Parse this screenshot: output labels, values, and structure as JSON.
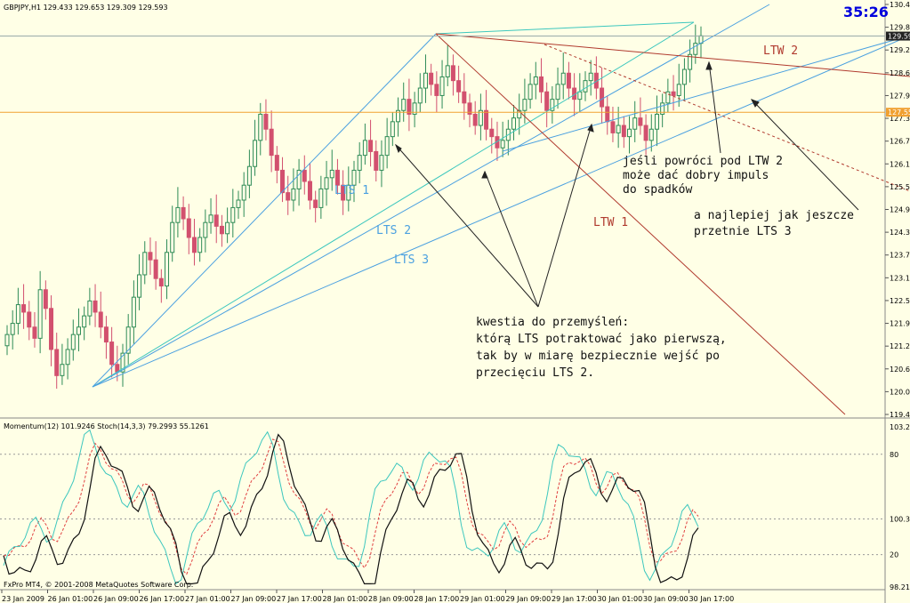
{
  "chart_data": {
    "type": "candlestick",
    "symbol_header": "GBPJPY,H1  129.433 129.653 129.309 129.593",
    "countdown": "35:26",
    "price_axis": {
      "range": [
        119.46,
        130.44
      ],
      "labels": [
        "130.440",
        "129.825",
        "129.225",
        "128.610",
        "127.995",
        "127.395",
        "126.780",
        "126.165",
        "125.565",
        "124.950",
        "124.335",
        "123.735",
        "123.120",
        "122.505",
        "121.905",
        "121.290",
        "120.675",
        "120.060",
        "119.460"
      ],
      "current_price_label": "129.593",
      "orange_level_label": "127.553"
    },
    "time_axis_labels": [
      "23 Jan 2009",
      "26 Jan 01:00",
      "26 Jan 09:00",
      "26 Jan 17:00",
      "27 Jan 01:00",
      "27 Jan 09:00",
      "27 Jan 17:00",
      "28 Jan 01:00",
      "28 Jan 09:00",
      "28 Jan 17:00",
      "29 Jan 01:00",
      "29 Jan 09:00",
      "29 Jan 17:00",
      "30 Jan 01:00",
      "30 Jan 09:00",
      "30 Jan 17:00"
    ],
    "candles_close": [
      121.6,
      121.9,
      122.4,
      122.2,
      121.8,
      121.5,
      122.8,
      122.3,
      121.2,
      120.5,
      120.8,
      121.2,
      121.6,
      121.8,
      122.1,
      122.5,
      122.2,
      121.8,
      121.4,
      120.8,
      120.6,
      121.1,
      121.8,
      122.6,
      123.2,
      123.8,
      123.6,
      123.1,
      122.9,
      123.8,
      124.6,
      125.0,
      124.7,
      124.2,
      123.8,
      124.2,
      124.6,
      124.8,
      124.5,
      124.3,
      124.6,
      125.0,
      125.2,
      125.6,
      126.1,
      126.8,
      127.5,
      127.1,
      126.4,
      126.0,
      125.4,
      125.2,
      125.5,
      126.0,
      125.7,
      125.2,
      125.0,
      125.5,
      125.8,
      126.0,
      125.6,
      125.2,
      125.6,
      126.0,
      126.4,
      126.8,
      126.5,
      126.0,
      126.4,
      126.9,
      127.3,
      127.6,
      127.9,
      127.5,
      127.8,
      128.2,
      128.6,
      128.3,
      128.0,
      128.5,
      128.8,
      128.4,
      128.1,
      127.8,
      127.5,
      127.2,
      127.6,
      127.1,
      126.9,
      126.6,
      126.8,
      127.1,
      127.4,
      127.6,
      127.9,
      128.3,
      128.5,
      128.1,
      127.6,
      127.9,
      128.3,
      128.6,
      128.2,
      127.9,
      128.1,
      128.4,
      128.6,
      128.2,
      127.7,
      127.3,
      127.0,
      127.2,
      126.9,
      127.1,
      127.4,
      127.2,
      126.8,
      127.1,
      127.5,
      127.8,
      128.1,
      128.0,
      128.3,
      128.7,
      129.1,
      129.4,
      129.6
    ],
    "momentum_header": "Momentum(12) 101.9246  Stoch(14,3,3) 79.2993 55.1261",
    "oscillator_axis_labels": [
      "103.2121",
      "80",
      "100.3046",
      "20",
      "98.2121"
    ],
    "line_labels": {
      "lts1": "LTS 1",
      "lts2": "LTS 2",
      "lts3": "LTS 3",
      "ltw1": "LTW 1",
      "ltw2": "LTW 2"
    },
    "annotations": {
      "a1": [
        "jeśli powróci pod LTW 2",
        "może dać dobry impuls",
        "do spadków"
      ],
      "a2": [
        "a najlepiej jak jeszcze",
        "przetnie LTS 3"
      ],
      "a3": [
        "kwestia do przemyśleń:",
        "którą LTS potraktować jako pierwszą,",
        "tak by w miarę bezpiecznie wejść po",
        "przecięciu LTS 2."
      ]
    },
    "footer": "FxPro MT4, © 2001-2008 MetaQuotes Software Corp.",
    "colors": {
      "background": "#FFFFE6",
      "bull": "#2E8B57",
      "bear": "#D2506E",
      "lts": "#4AA0E0",
      "ltw": "#B03A2E",
      "orange": "#F0A030",
      "countdown": "#0000DD"
    }
  }
}
